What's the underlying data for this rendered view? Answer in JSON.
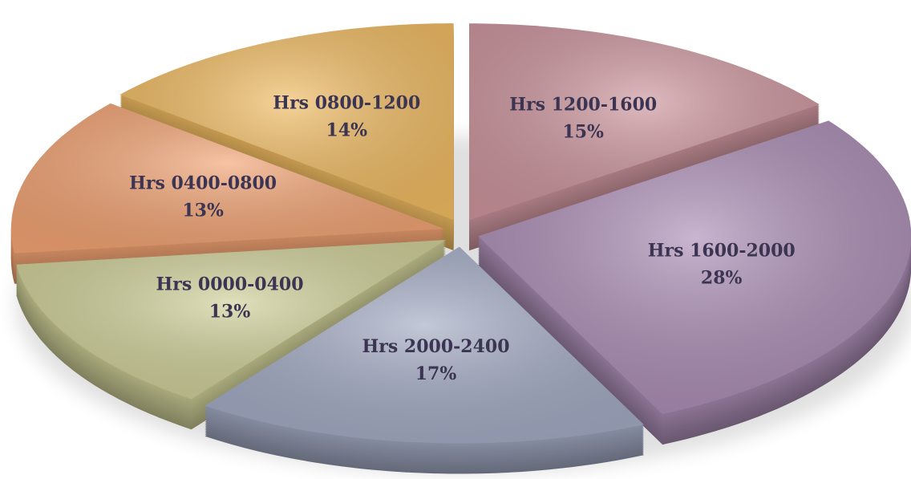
{
  "chart_data": {
    "type": "pie",
    "categories": [
      "Hrs 0000-0400",
      "Hrs 0400-0800",
      "Hrs 0800-1200",
      "Hrs 1200-1600",
      "Hrs 1600-2000",
      "Hrs 2000-2400"
    ],
    "values": [
      13,
      13,
      14,
      15,
      28,
      17
    ],
    "value_labels": [
      "13%",
      "13%",
      "14%",
      "15%",
      "28%",
      "17%"
    ],
    "colors": [
      "#cfcf98",
      "#f2a373",
      "#f0bb62",
      "#cc959d",
      "#ab8db5",
      "#a3abc4"
    ]
  }
}
